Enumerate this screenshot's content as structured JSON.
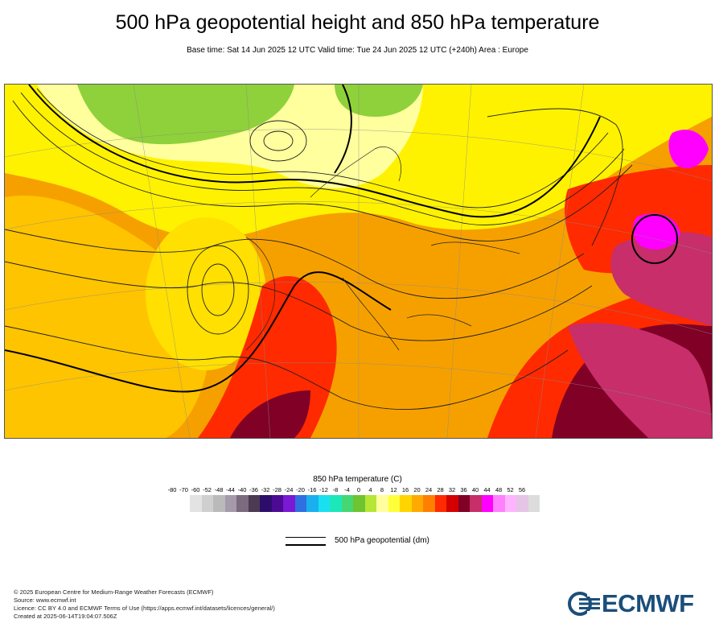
{
  "title": "500 hPa geopotential height and 850 hPa temperature",
  "subtitle": "Base time: Sat 14 Jun 2025 12 UTC Valid time: Tue 24 Jun 2025 12 UTC (+240h) Area : Europe",
  "legend": {
    "title": "850 hPa temperature (C)",
    "ticks": [
      "-80",
      "-70",
      "-60",
      "-52",
      "-48",
      "-44",
      "-40",
      "-36",
      "-32",
      "-28",
      "-24",
      "-20",
      "-16",
      "-12",
      "-8",
      "-4",
      "0",
      "4",
      "8",
      "12",
      "16",
      "20",
      "24",
      "28",
      "32",
      "36",
      "40",
      "44",
      "48",
      "52",
      "56"
    ],
    "colors": [
      "#e3e3e3",
      "#cfcfcf",
      "#bababa",
      "#a59aaa",
      "#7b6a80",
      "#4c3a52",
      "#2c0d6b",
      "#4d0a94",
      "#7a18d6",
      "#2f6fe0",
      "#1ab0f0",
      "#19e0f0",
      "#1ce7b8",
      "#45d774",
      "#6ec431",
      "#b6e636",
      "#ffff9e",
      "#ffff3a",
      "#ffd400",
      "#ffaa00",
      "#ff7f00",
      "#ff2a00",
      "#d40000",
      "#800026",
      "#c72e6a",
      "#ff00ff",
      "#ff7fff",
      "#ffb4ff",
      "#e5c5e5",
      "#dcdcdc"
    ],
    "geopotential_label": "500 hPa geopotential (dm)"
  },
  "footer": {
    "line1": "© 2025 European Centre for Medium-Range Weather Forecasts (ECMWF)",
    "line2": "Source: www.ecmwf.int",
    "line3": "Licence: CC BY 4.0 and ECMWF Terms of Use (https://apps.ecmwf.int/datasets/licences/general/)",
    "line4": "Created at 2025-06-14T19:04:07.506Z"
  },
  "logo": {
    "text": "ECMWF",
    "color": "#1b4e7a"
  }
}
